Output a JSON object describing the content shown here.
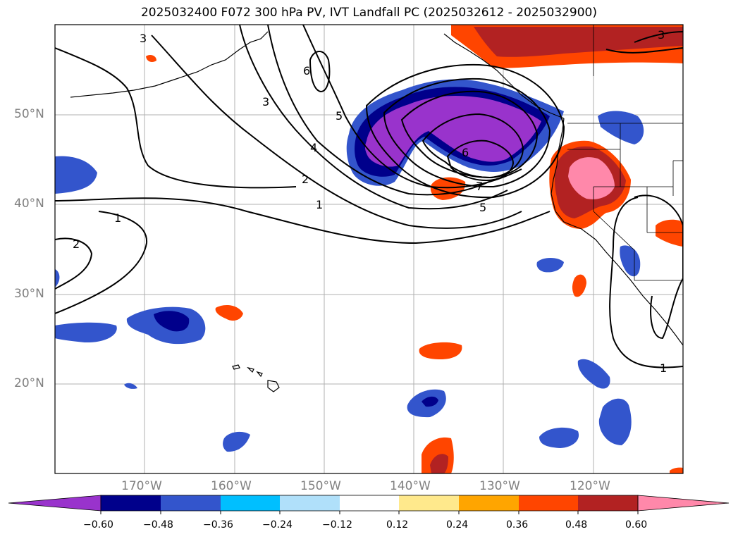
{
  "title": "2025032400 F072 300 hPa PV, IVT Landfall PC (2025032612 - 2025032900)",
  "map": {
    "projection": "PlateCarree",
    "extent": {
      "lon_min": -180,
      "lon_max": -110,
      "lat_min": 10,
      "lat_max": 60
    },
    "lat_labels": [
      "50°N",
      "40°N",
      "30°N",
      "20°N"
    ],
    "lon_labels": [
      "170°W",
      "160°W",
      "150°W",
      "140°W",
      "130°W",
      "120°W"
    ],
    "gridlines": true,
    "land_outline_color": "#000000"
  },
  "contours": {
    "field": "300 hPa PV",
    "labels": [
      "3",
      "6",
      "3",
      "5",
      "4",
      "2",
      "1",
      "6",
      "7",
      "5",
      "1",
      "2",
      "3",
      "1"
    ]
  },
  "colorbar": {
    "ticks": [
      "−0.60",
      "−0.48",
      "−0.36",
      "−0.24",
      "−0.12",
      "0.12",
      "0.24",
      "0.36",
      "0.48",
      "0.60"
    ],
    "colors": [
      "#9933CC",
      "#00008B",
      "#3355CC",
      "#00BFFF",
      "#B0E0FA",
      "#FFFFFF",
      "#FFE98C",
      "#FFA500",
      "#FF4500",
      "#B22222",
      "#FF88AA"
    ],
    "extend": "both"
  }
}
